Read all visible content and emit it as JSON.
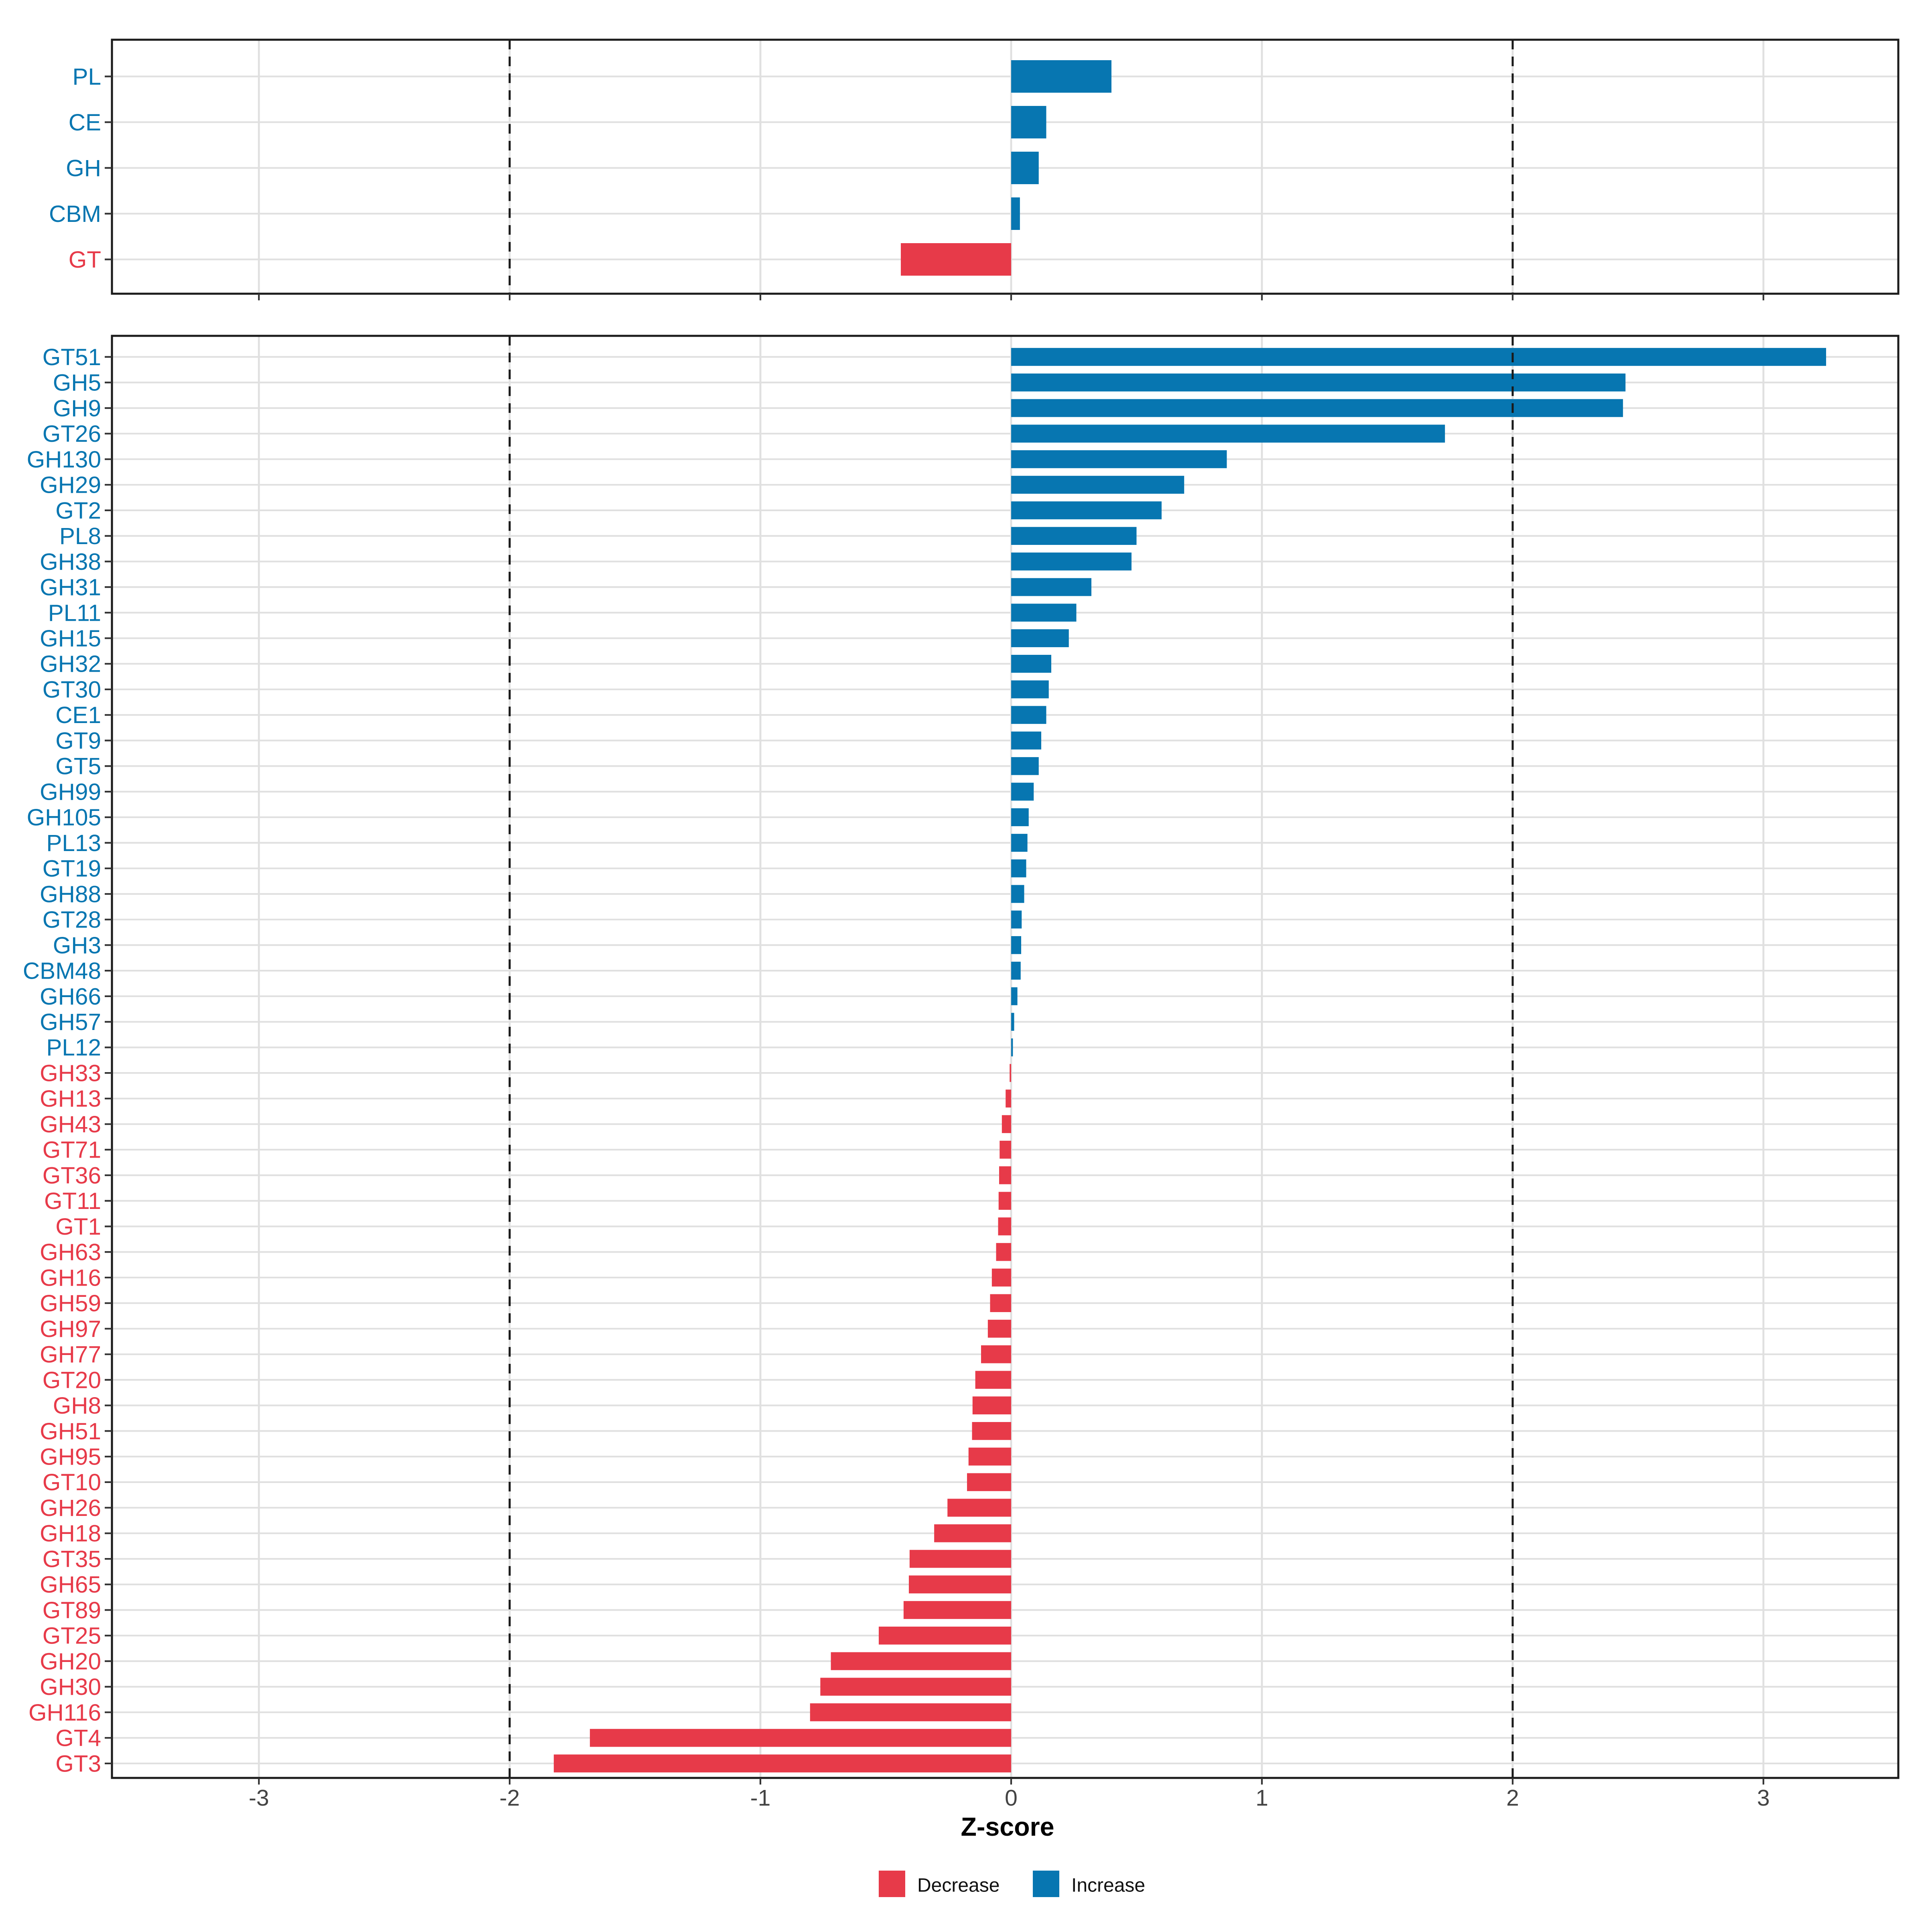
{
  "axis": {
    "title": "Z-score",
    "tick_labels": [
      "-3",
      "-2",
      "-1",
      "0",
      "1",
      "2",
      "3"
    ],
    "tick_values": [
      -3,
      -2,
      -1,
      0,
      1,
      2,
      3
    ],
    "range": [
      -3.586,
      3.538
    ],
    "dashed_guides": [
      -2,
      2
    ]
  },
  "legend": {
    "items": [
      {
        "label": "Decrease",
        "color": "#e73a49"
      },
      {
        "label": "Increase",
        "color": "#0776b1"
      }
    ]
  },
  "colors": {
    "increase": "#0776b1",
    "decrease": "#e73a49",
    "grid": "#e0e0e0",
    "panel_border": "#1b1b1b",
    "tick_mark": "#333333",
    "tick_text": "#444444",
    "axis_title": "#000000",
    "legend_text": "#111111"
  },
  "chart_data": [
    {
      "type": "bar",
      "panel": "top",
      "orientation": "horizontal",
      "xlabel": "Z-score",
      "xlim": [
        -3.59,
        3.54
      ],
      "grid": true,
      "legend_position": "bottom",
      "color_rule": {
        "positive": "Increase",
        "negative": "Decrease"
      },
      "categories": [
        "PL",
        "CE",
        "GH",
        "CBM",
        "GT"
      ],
      "values": [
        0.4,
        0.14,
        0.11,
        0.035,
        -0.44
      ]
    },
    {
      "type": "bar",
      "panel": "bottom",
      "orientation": "horizontal",
      "xlabel": "Z-score",
      "xlim": [
        -3.59,
        3.54
      ],
      "grid": true,
      "legend_position": "bottom",
      "color_rule": {
        "positive": "Increase",
        "negative": "Decrease"
      },
      "categories": [
        "GT51",
        "GH5",
        "GH9",
        "GT26",
        "GH130",
        "GH29",
        "GT2",
        "PL8",
        "GH38",
        "GH31",
        "PL11",
        "GH15",
        "GH32",
        "GT30",
        "CE1",
        "GT9",
        "GT5",
        "GH99",
        "GH105",
        "PL13",
        "GT19",
        "GH88",
        "GT28",
        "GH3",
        "CBM48",
        "GH66",
        "GH57",
        "PL12",
        "GH33",
        "GH13",
        "GH43",
        "GT71",
        "GT36",
        "GT11",
        "GT1",
        "GH63",
        "GH16",
        "GH59",
        "GH97",
        "GH77",
        "GT20",
        "GH8",
        "GH51",
        "GH95",
        "GT10",
        "GH26",
        "GH18",
        "GT35",
        "GH65",
        "GT89",
        "GT25",
        "GH20",
        "GH30",
        "GH116",
        "GT4",
        "GT3"
      ],
      "values": [
        3.25,
        2.45,
        2.44,
        1.73,
        0.86,
        0.69,
        0.6,
        0.5,
        0.48,
        0.32,
        0.26,
        0.23,
        0.16,
        0.15,
        0.14,
        0.12,
        0.11,
        0.09,
        0.07,
        0.065,
        0.06,
        0.052,
        0.042,
        0.04,
        0.038,
        0.025,
        0.012,
        0.007,
        -0.006,
        -0.022,
        -0.037,
        -0.046,
        -0.048,
        -0.05,
        -0.052,
        -0.06,
        -0.077,
        -0.084,
        -0.093,
        -0.12,
        -0.143,
        -0.154,
        -0.156,
        -0.17,
        -0.176,
        -0.254,
        -0.307,
        -0.405,
        -0.408,
        -0.429,
        -0.528,
        -0.719,
        -0.761,
        -0.802,
        -1.68,
        -1.824
      ]
    }
  ]
}
